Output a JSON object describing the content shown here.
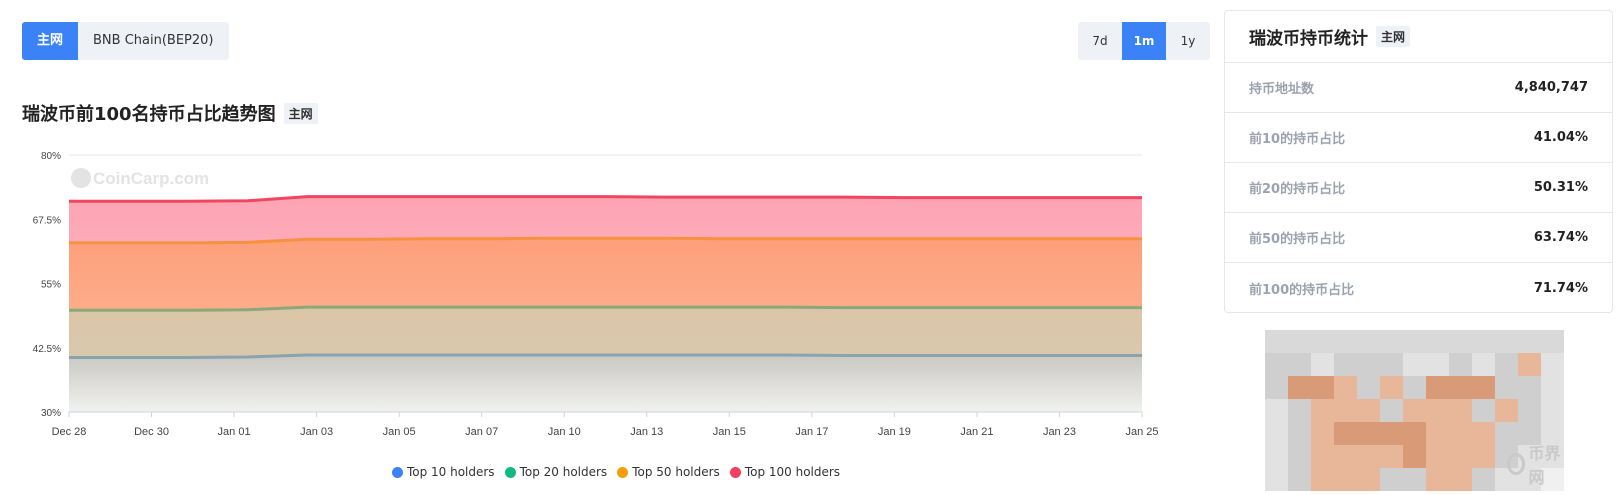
{
  "network_tabs": [
    {
      "label": "主网",
      "active": true
    },
    {
      "label": "BNB Chain(BEP20)",
      "active": false
    }
  ],
  "range_tabs": [
    {
      "label": "7d",
      "active": false
    },
    {
      "label": "1m",
      "active": true
    },
    {
      "label": "1y",
      "active": false
    }
  ],
  "chart_section": {
    "title": "瑞波币前100名持币占比趋势图",
    "badge": "主网",
    "watermark": "CoinCarp.com"
  },
  "chart_data": {
    "type": "area",
    "title": "瑞波币前100名持币占比趋势图",
    "ylim": [
      30,
      80
    ],
    "yticks": [
      "80%",
      "67.5%",
      "55%",
      "42.5%",
      "30%"
    ],
    "xticks": [
      "Dec 28",
      "Dec 30",
      "Jan 01",
      "Jan 03",
      "Jan 05",
      "Jan 07",
      "Jan 10",
      "Jan 13",
      "Jan 15",
      "Jan 17",
      "Jan 19",
      "Jan 21",
      "Jan 23",
      "Jan 25"
    ],
    "legend_position": "bottom",
    "grid": true,
    "series": [
      {
        "name": "Top 100 holders",
        "color": "#f43f5e",
        "values": [
          71.0,
          71.0,
          71.0,
          71.1,
          71.9,
          71.9,
          71.9,
          71.9,
          71.9,
          71.9,
          71.8,
          71.8,
          71.8,
          71.8,
          71.7,
          71.7,
          71.7,
          71.7,
          71.7
        ]
      },
      {
        "name": "Top 50 holders",
        "color": "#f59e0b",
        "values": [
          62.9,
          62.9,
          62.9,
          63.0,
          63.6,
          63.6,
          63.7,
          63.7,
          63.8,
          63.8,
          63.8,
          63.7,
          63.7,
          63.7,
          63.7,
          63.7,
          63.7,
          63.7,
          63.7
        ]
      },
      {
        "name": "Top 20 holders",
        "color": "#10b981",
        "values": [
          49.8,
          49.8,
          49.8,
          49.9,
          50.4,
          50.4,
          50.4,
          50.4,
          50.4,
          50.4,
          50.4,
          50.4,
          50.4,
          50.3,
          50.3,
          50.3,
          50.3,
          50.3,
          50.3
        ]
      },
      {
        "name": "Top 10 holders",
        "color": "#3b82f6",
        "values": [
          40.6,
          40.6,
          40.6,
          40.7,
          41.1,
          41.1,
          41.1,
          41.1,
          41.1,
          41.1,
          41.1,
          41.1,
          41.1,
          41.0,
          41.0,
          41.0,
          41.0,
          41.0,
          41.0
        ]
      }
    ]
  },
  "stats_card": {
    "title": "瑞波币持币统计",
    "badge": "主网",
    "rows": [
      {
        "label": "持币地址数",
        "value": "4,840,747"
      },
      {
        "label": "前10的持币占比",
        "value": "41.04%"
      },
      {
        "label": "前20的持币占比",
        "value": "50.31%"
      },
      {
        "label": "前50的持币占比",
        "value": "63.74%"
      },
      {
        "label": "前100的持币占比",
        "value": "71.74%"
      }
    ]
  },
  "ad": {
    "logo_text": "币界网",
    "colors": {
      "gray": "#cfcfcf",
      "light": "#e2e2e2",
      "peach": "#e8b79a",
      "orange": "#d99a78",
      "pale": "#f0f0f0"
    }
  }
}
